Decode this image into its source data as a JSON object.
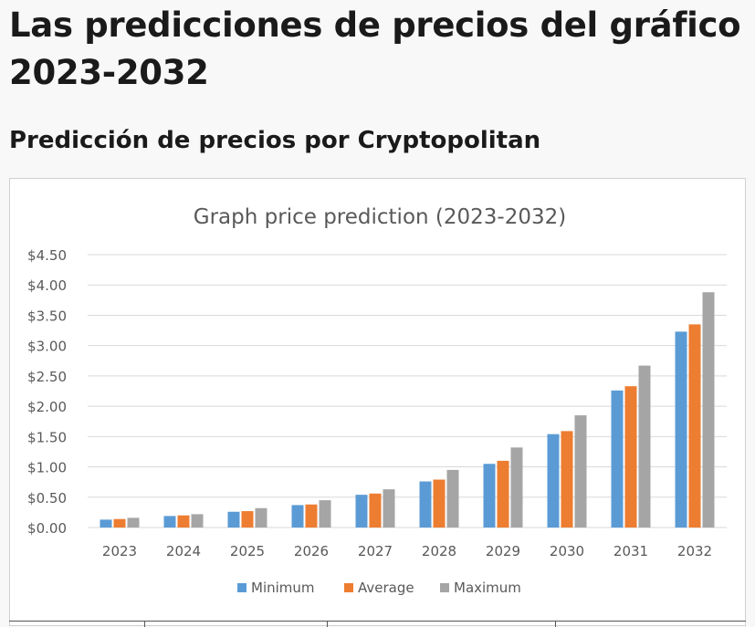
{
  "page": {
    "title": "Las predicciones de precios del gráfico 2023-2032",
    "subtitle": "Predicción de precios por Cryptopolitan"
  },
  "colors": {
    "minimum": "#5b9bd5",
    "average": "#ed7d31",
    "maximum": "#a5a5a5",
    "gridline": "#d9d9d9",
    "axis_text": "#595959"
  },
  "chart_data": {
    "type": "bar",
    "title": "Graph price prediction (2023-2032)",
    "xlabel": "",
    "ylabel": "",
    "categories": [
      "2023",
      "2024",
      "2025",
      "2026",
      "2027",
      "2028",
      "2029",
      "2030",
      "2031",
      "2032"
    ],
    "series": [
      {
        "name": "Minimum",
        "values": [
          0.13,
          0.19,
          0.26,
          0.37,
          0.54,
          0.76,
          1.05,
          1.54,
          2.26,
          3.23
        ]
      },
      {
        "name": "Average",
        "values": [
          0.14,
          0.2,
          0.27,
          0.38,
          0.56,
          0.79,
          1.1,
          1.59,
          2.33,
          3.35
        ]
      },
      {
        "name": "Maximum",
        "values": [
          0.16,
          0.22,
          0.32,
          0.45,
          0.63,
          0.95,
          1.32,
          1.85,
          2.67,
          3.88
        ]
      }
    ],
    "y_ticks": [
      "$0.00",
      "$0.50",
      "$1.00",
      "$1.50",
      "$2.00",
      "$2.50",
      "$3.00",
      "$3.50",
      "$4.00",
      "$4.50"
    ],
    "ylim": [
      0,
      4.5
    ],
    "grid": true,
    "legend_position": "bottom"
  }
}
